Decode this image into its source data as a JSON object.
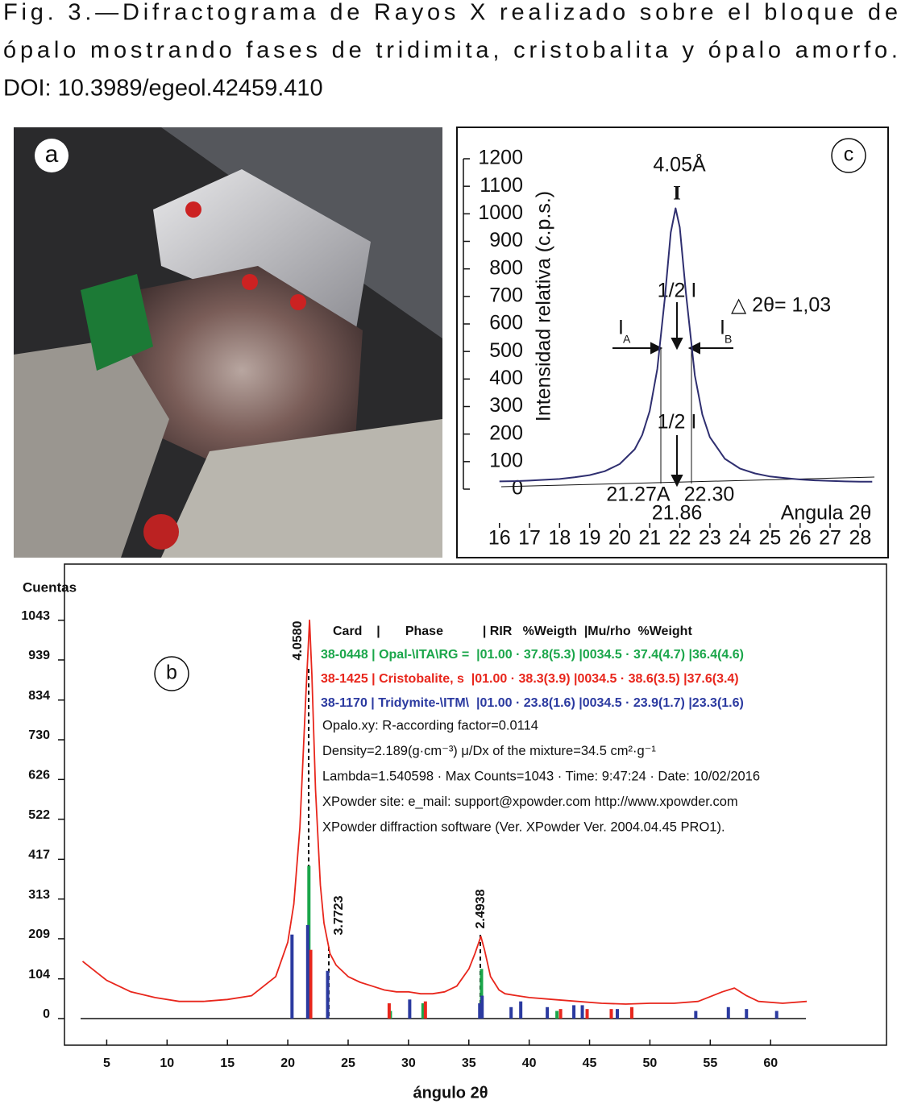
{
  "caption": [
    "Fig. 3.—Difractograma de Rayos X realizado sobre el bloque de",
    "ópalo mostrando fases de tridimita, cristobalita y ópalo amorfo.",
    "DOI: 10.3989/egeol.42459.410"
  ],
  "photo_label": "a",
  "chart_data": [
    {
      "type": "line",
      "panel_label": "c",
      "ylabel": "Intensidad relativa (c.p.s.)",
      "xlabel": "Angula 2θ",
      "x": [
        16,
        16.5,
        17,
        17.5,
        18,
        18.5,
        19,
        19.5,
        20,
        20.5,
        20.75,
        21,
        21.25,
        21.5,
        21.7,
        21.86,
        22,
        22.2,
        22.5,
        22.75,
        23,
        23.5,
        24,
        24.5,
        25,
        25.5,
        26,
        26.5,
        27,
        27.5,
        28,
        28.4
      ],
      "values": [
        28,
        29,
        31,
        34,
        37,
        43,
        51,
        65,
        91,
        145,
        197,
        284,
        436,
        692,
        932,
        1020,
        951,
        716,
        413,
        271,
        189,
        110,
        75,
        57,
        46,
        40,
        35,
        32,
        30,
        28,
        27,
        27
      ],
      "color": "#2f2f70",
      "xlim": [
        15.9,
        28.5
      ],
      "ylim": [
        0,
        1200
      ],
      "xticks": [
        16,
        17,
        18,
        19,
        20,
        21,
        22,
        23,
        24,
        25,
        26,
        27,
        28
      ],
      "yticks": [
        0,
        100,
        200,
        300,
        400,
        500,
        600,
        700,
        800,
        900,
        1000,
        1100,
        1200
      ],
      "annotations": [
        "4.05Å",
        "I",
        "1/2 I",
        "△ 2θ= 1,03",
        "I",
        "A",
        "I",
        "B",
        "1/2 I",
        "21.27A",
        "22.30",
        "21.86"
      ]
    },
    {
      "type": "stick",
      "panel_label": "b",
      "ylabel": "Cuentas",
      "xlabel": "ángulo 2θ",
      "profile": {
        "color": "#e8261c",
        "x": [
          3,
          5,
          7,
          9,
          11,
          13,
          15,
          17,
          19,
          20,
          20.5,
          21,
          21.5,
          21.8,
          22,
          22.3,
          22.7,
          23,
          23.5,
          24,
          25,
          26,
          27,
          28,
          29,
          30,
          31,
          32,
          33,
          34,
          35,
          35.5,
          36,
          36.3,
          36.8,
          37.5,
          38,
          39,
          40,
          42,
          44,
          46,
          48,
          50,
          52,
          54,
          56,
          57,
          58,
          59,
          61,
          63
        ],
        "values": [
          150,
          100,
          70,
          55,
          45,
          45,
          50,
          60,
          110,
          200,
          300,
          500,
          850,
          1043,
          900,
          600,
          350,
          250,
          170,
          140,
          110,
          95,
          85,
          75,
          70,
          70,
          65,
          65,
          70,
          85,
          130,
          170,
          215,
          180,
          110,
          75,
          65,
          60,
          55,
          50,
          45,
          40,
          38,
          40,
          40,
          45,
          70,
          80,
          60,
          45,
          40,
          45
        ]
      },
      "series": [
        {
          "name": "38-0448 | Opal-\\ITA\\RG =  |01.00 · 37.8(5.3) |0034.5 · 37.4(4.7) |36.4(4.6)",
          "color": "#1aa64a",
          "x": [
            21.75,
            28.5,
            31.2,
            36.05,
            42.3,
            48.5
          ],
          "values": [
            400,
            20,
            40,
            130,
            20,
            25
          ]
        },
        {
          "name": "38-1425 | Cristobalite, s  |01.00 · 38.3(3.9) |0034.5 · 38.6(3.5) |37.6(3.4)",
          "color": "#e8261c",
          "x": [
            21.9,
            28.4,
            31.4,
            36.0,
            42.6,
            44.8,
            46.8,
            48.5
          ],
          "values": [
            180,
            40,
            45,
            40,
            25,
            25,
            25,
            30
          ]
        },
        {
          "name": "38-1170 | Tridymite-\\ITM\\  |01.00 · 23.8(1.6) |0034.5 · 23.9(1.7) |23.3(1.6)",
          "color": "#2b3aa0",
          "x": [
            20.35,
            21.65,
            23.3,
            30.1,
            35.9,
            36.1,
            38.5,
            39.3,
            41.5,
            43.7,
            44.4,
            47.3,
            53.8,
            56.5,
            58.0,
            60.5
          ],
          "values": [
            220,
            245,
            125,
            50,
            40,
            60,
            30,
            45,
            30,
            35,
            35,
            25,
            20,
            30,
            25,
            20
          ]
        }
      ],
      "xlim": [
        1.5,
        69.6
      ],
      "ylim": [
        0,
        1190
      ],
      "xticks": [
        5,
        10,
        15,
        20,
        25,
        30,
        35,
        40,
        45,
        50,
        55,
        60
      ],
      "yticks": [
        0,
        104,
        209,
        313,
        417,
        522,
        626,
        730,
        834,
        939,
        1043
      ],
      "peak_labels": [
        "4.0580",
        "3.7723",
        "2.4938"
      ],
      "table_header": "Card    |       Phase           | RIR   %Weigth  |Mu/rho  %Weight",
      "info": [
        "Opalo.xy: R-according factor=0.0114",
        "Density=2.189(g·cm⁻³) μ/Dx of the mixture=34.5 cm²·g⁻¹",
        "Lambda=1.540598 · Max Counts=1043 · Time: 9:47:24 · Date: 10/02/2016",
        "XPowder site: e_mail: support@xpowder.com  http://www.xpowder.com",
        "XPowder diffraction software (Ver. XPowder Ver. 2004.04.45 PRO1)."
      ]
    }
  ]
}
